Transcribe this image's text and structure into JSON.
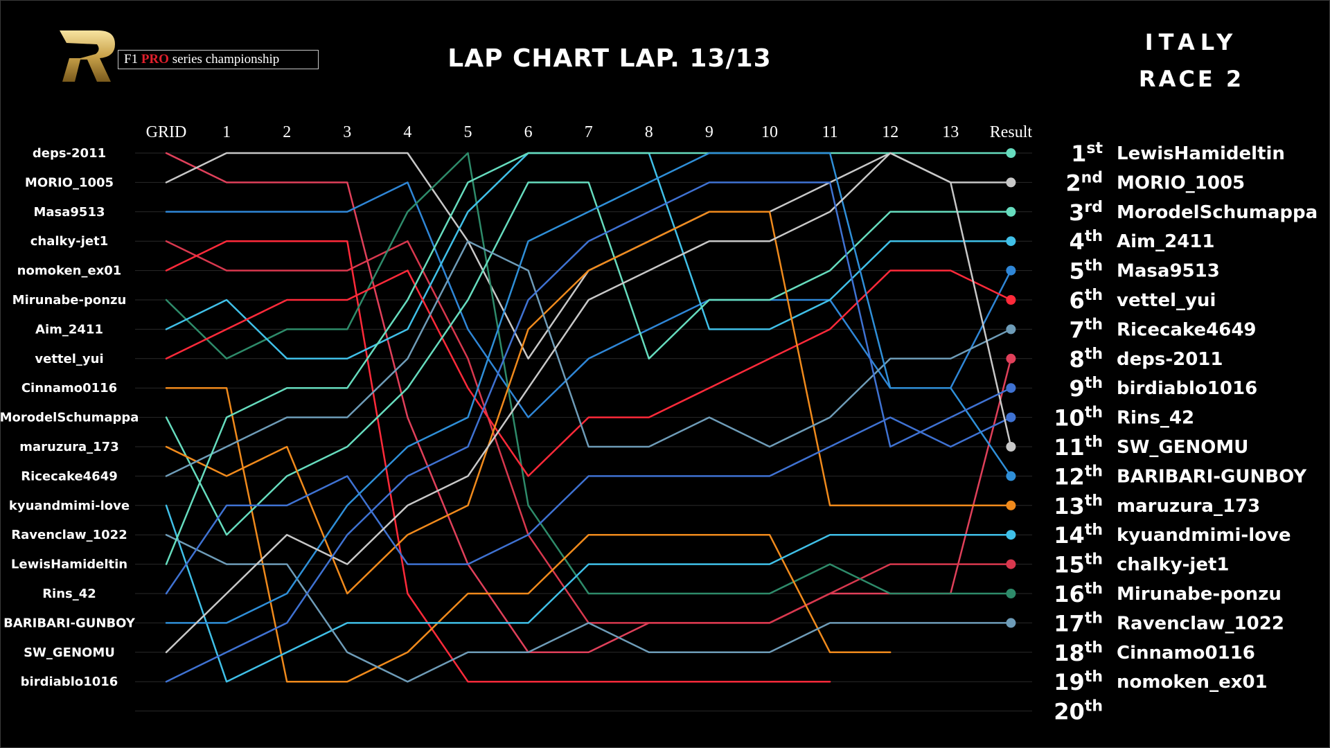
{
  "brand": {
    "prefix": "F1",
    "pro": "PRO",
    "suffix": "series championship"
  },
  "title": "LAP CHART  LAP. 13/13",
  "event": {
    "line1": "ITALY",
    "line2": "RACE 2"
  },
  "chart_data": {
    "type": "line",
    "title": "LAP CHART  LAP. 13/13",
    "x": [
      "GRID",
      "1",
      "2",
      "3",
      "4",
      "5",
      "6",
      "7",
      "8",
      "9",
      "10",
      "11",
      "12",
      "13",
      "Result"
    ],
    "y_axis": "position (1 = top)",
    "ylim": [
      1,
      20
    ],
    "grid_order": [
      "deps-2011",
      "MORIO_1005",
      "Masa9513",
      "chalky-jet1",
      "nomoken_ex01",
      "Mirunabe-ponzu",
      "Aim_2411",
      "vettel_yui",
      "Cinnamo0116",
      "MorodelSchumappa",
      "maruzura_173",
      "Ricecake4649",
      "kyuandmimi-love",
      "Ravenclaw_1022",
      "LewisHamideltin",
      "Rins_42",
      "BARIBARI-GUNBOY",
      "SW_GENOMU",
      "birdiablo1016"
    ],
    "result_positions": [
      "1st",
      "2nd",
      "3rd",
      "4th",
      "5th",
      "6th",
      "7th",
      "8th",
      "9th",
      "10th",
      "11th",
      "12th",
      "13th",
      "14th",
      "15th",
      "16th",
      "17th",
      "18th",
      "19th",
      "20th"
    ],
    "result_order": [
      "LewisHamideltin",
      "MORIO_1005",
      "MorodelSchumappa",
      "Aim_2411",
      "Masa9513",
      "vettel_yui",
      "Ricecake4649",
      "deps-2011",
      "birdiablo1016",
      "Rins_42",
      "SW_GENOMU",
      "BARIBARI-GUNBOY",
      "maruzura_173",
      "kyuandmimi-love",
      "chalky-jet1",
      "Mirunabe-ponzu",
      "Ravenclaw_1022",
      "Cinnamo0116",
      "nomoken_ex01"
    ],
    "series": [
      {
        "name": "deps-2011",
        "color": "#e0405a",
        "positions": [
          1,
          2,
          2,
          2,
          10,
          15,
          18,
          18,
          17,
          17,
          17,
          16,
          16,
          16,
          8
        ]
      },
      {
        "name": "MORIO_1005",
        "color": "#c8c8c8",
        "positions": [
          2,
          1,
          1,
          1,
          1,
          4,
          8,
          5,
          4,
          3,
          3,
          2,
          1,
          2,
          2
        ]
      },
      {
        "name": "Masa9513",
        "color": "#2f86d6",
        "positions": [
          3,
          3,
          3,
          3,
          2,
          7,
          10,
          8,
          7,
          6,
          6,
          6,
          9,
          9,
          5
        ]
      },
      {
        "name": "chalky-jet1",
        "color": "#d8384e",
        "positions": [
          4,
          5,
          5,
          5,
          4,
          8,
          14,
          17,
          17,
          17,
          17,
          16,
          15,
          15,
          15
        ]
      },
      {
        "name": "nomoken_ex01",
        "color": "#ff2a3a",
        "positions": [
          5,
          4,
          4,
          4,
          16,
          19,
          19,
          19,
          19,
          19,
          19,
          19
        ]
      },
      {
        "name": "Mirunabe-ponzu",
        "color": "#2e8b6a",
        "positions": [
          6,
          8,
          7,
          7,
          3,
          1,
          13,
          16,
          16,
          16,
          16,
          15,
          16,
          16,
          16
        ]
      },
      {
        "name": "Aim_2411",
        "color": "#40c0e8",
        "positions": [
          7,
          6,
          8,
          8,
          7,
          3,
          1,
          1,
          1,
          7,
          7,
          6,
          4,
          4,
          4
        ]
      },
      {
        "name": "vettel_yui",
        "color": "#ff2a3a",
        "positions": [
          8,
          7,
          6,
          6,
          5,
          9,
          12,
          10,
          10,
          9,
          8,
          7,
          5,
          5,
          6
        ]
      },
      {
        "name": "Cinnamo0116",
        "color": "#f08a1c",
        "positions": [
          9,
          9,
          19,
          19,
          18,
          16,
          16,
          14,
          14,
          14,
          14,
          18,
          18
        ]
      },
      {
        "name": "MorodelSchumappa",
        "color": "#66dcbe",
        "positions": [
          10,
          14,
          12,
          11,
          9,
          6,
          2,
          2,
          8,
          6,
          6,
          5,
          3,
          3,
          3
        ]
      },
      {
        "name": "maruzura_173",
        "color": "#f08a1c",
        "positions": [
          11,
          12,
          11,
          16,
          14,
          13,
          7,
          5,
          4,
          3,
          3,
          13,
          13,
          13,
          13
        ]
      },
      {
        "name": "Ricecake4649",
        "color": "#6e9cb8",
        "positions": [
          12,
          11,
          10,
          10,
          8,
          4,
          5,
          11,
          11,
          10,
          11,
          10,
          8,
          8,
          7
        ]
      },
      {
        "name": "kyuandmimi-love",
        "color": "#40c0e8",
        "positions": [
          13,
          19,
          18,
          17,
          17,
          17,
          17,
          15,
          15,
          15,
          15,
          14,
          14,
          14,
          14
        ]
      },
      {
        "name": "Ravenclaw_1022",
        "color": "#6e9cb8",
        "positions": [
          14,
          15,
          15,
          18,
          19,
          18,
          18,
          17,
          18,
          18,
          18,
          17,
          17,
          17,
          17
        ]
      },
      {
        "name": "LewisHamideltin",
        "color": "#66dcbe",
        "positions": [
          15,
          10,
          9,
          9,
          6,
          2,
          1,
          1,
          1,
          1,
          1,
          1,
          1,
          1,
          1
        ]
      },
      {
        "name": "Rins_42",
        "color": "#3f72d2",
        "positions": [
          16,
          13,
          13,
          12,
          15,
          15,
          14,
          12,
          12,
          12,
          12,
          11,
          10,
          11,
          10
        ]
      },
      {
        "name": "BARIBARI-GUNBOY",
        "color": "#2f8fd8",
        "positions": [
          17,
          17,
          16,
          13,
          11,
          10,
          4,
          3,
          2,
          1,
          1,
          1,
          9,
          9,
          12
        ]
      },
      {
        "name": "SW_GENOMU",
        "color": "#c8c8c8",
        "positions": [
          18,
          16,
          14,
          15,
          13,
          12,
          9,
          6,
          5,
          4,
          4,
          3,
          1,
          2,
          11
        ]
      },
      {
        "name": "birdiablo1016",
        "color": "#3f72d2",
        "positions": [
          19,
          18,
          17,
          14,
          12,
          11,
          6,
          4,
          3,
          2,
          2,
          2,
          11,
          10,
          9
        ]
      }
    ]
  }
}
